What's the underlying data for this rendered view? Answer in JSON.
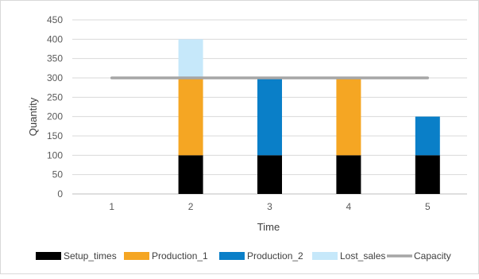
{
  "chart_data": {
    "type": "bar",
    "stacked": true,
    "categories": [
      "1",
      "2",
      "3",
      "4",
      "5"
    ],
    "series": [
      {
        "name": "Setup_times",
        "kind": "bar",
        "color": "#000000",
        "values": [
          0,
          100,
          100,
          100,
          100
        ]
      },
      {
        "name": "Production_1",
        "kind": "bar",
        "color": "#f5a623",
        "values": [
          0,
          200,
          0,
          200,
          0
        ]
      },
      {
        "name": "Production_2",
        "kind": "bar",
        "color": "#0a7fc8",
        "values": [
          0,
          0,
          200,
          0,
          100
        ]
      },
      {
        "name": "Lost_sales",
        "kind": "bar",
        "color": "#c6e8fa",
        "values": [
          0,
          100,
          0,
          0,
          0
        ]
      },
      {
        "name": "Capacity",
        "kind": "line",
        "color": "#a6a6a6",
        "values": [
          300,
          300,
          300,
          300,
          300
        ]
      }
    ],
    "xlabel": "Time",
    "ylabel": "Quantity",
    "ylim": [
      0,
      450
    ],
    "yticks": [
      "0",
      "50",
      "100",
      "150",
      "200",
      "250",
      "300",
      "350",
      "400",
      "450"
    ],
    "grid": true,
    "legend_position": "bottom"
  }
}
